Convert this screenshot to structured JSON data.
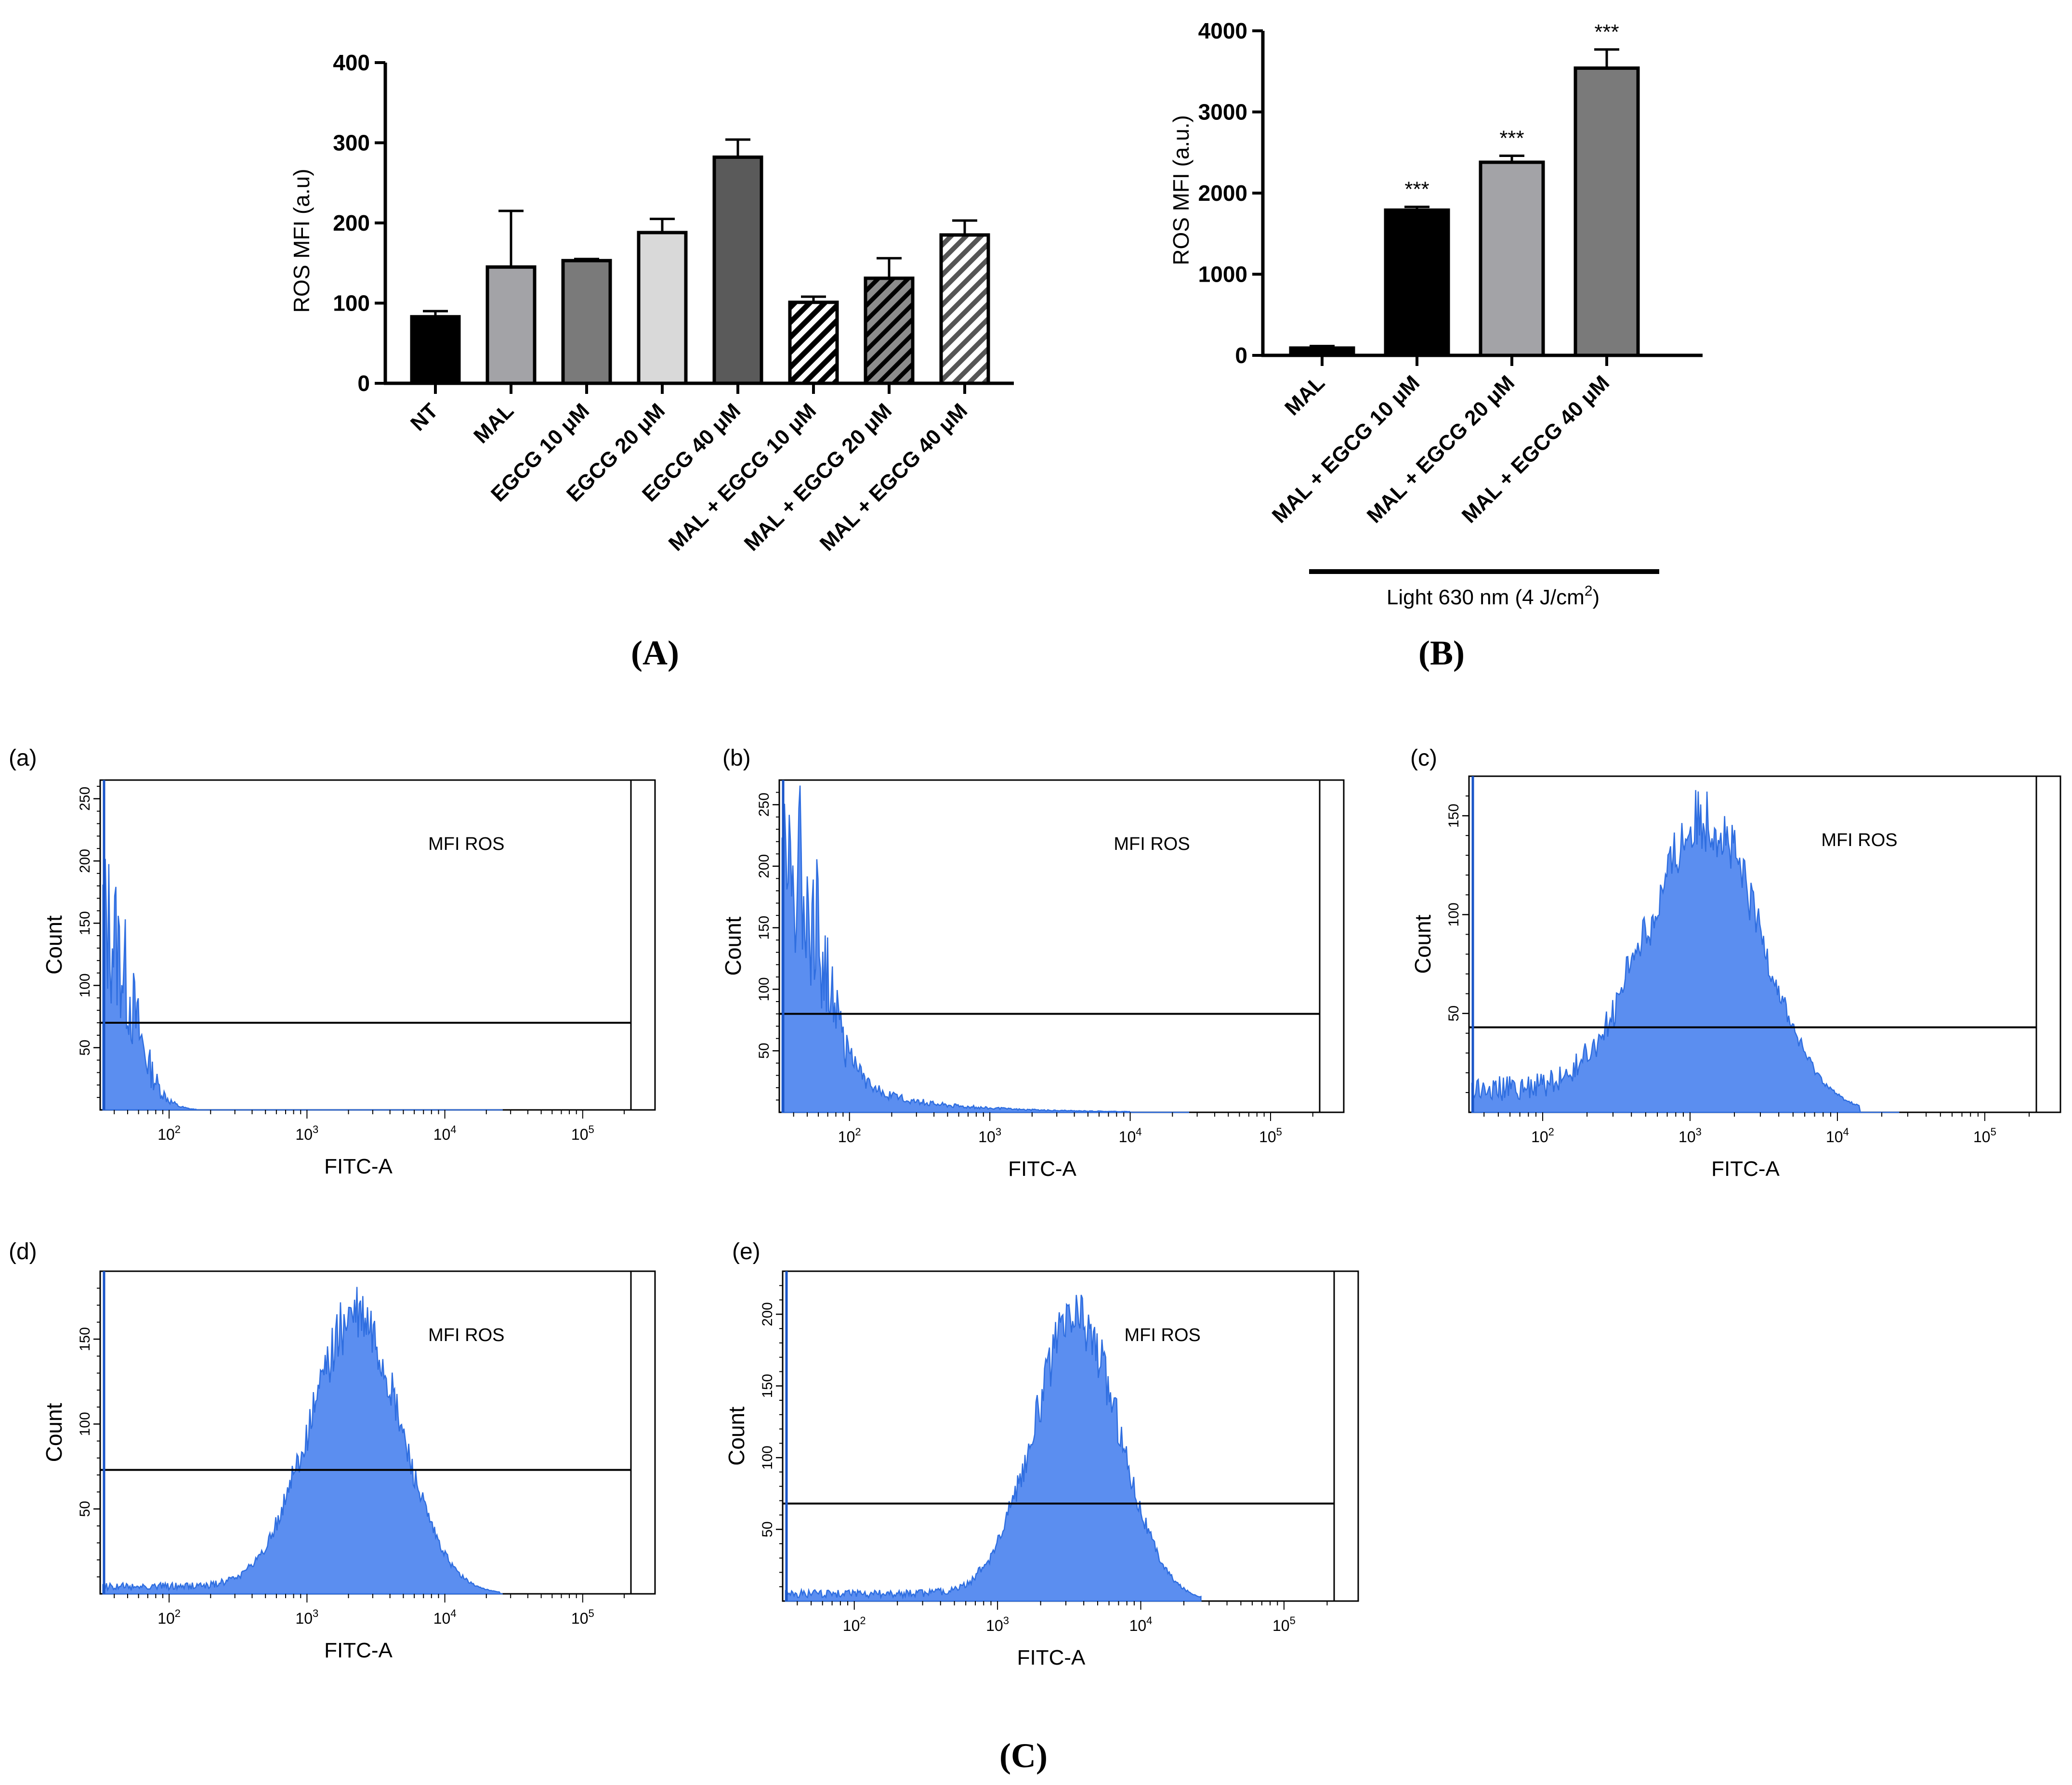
{
  "chart_data": [
    {
      "id": "A",
      "type": "bar",
      "panel_label": "(A)",
      "title": "",
      "ylabel": "ROS MFI (a.u)",
      "xlabel": "",
      "ylim": [
        0,
        400
      ],
      "yticks": [
        "0",
        "100",
        "200",
        "300",
        "400"
      ],
      "categories": [
        "NT",
        "MAL",
        "EGCG 10 μM",
        "EGCG 20 μM",
        "EGCG 40 μM",
        "MAL + EGCG 10 μM",
        "MAL + EGCG 20 μM",
        "MAL + EGCG 40 μM"
      ],
      "values": [
        83,
        145,
        153,
        188,
        282,
        101,
        131,
        185
      ],
      "errors": [
        7,
        70,
        2,
        17,
        22,
        7,
        25,
        18
      ],
      "fills": [
        "#000000",
        "#a3a3a7",
        "#7a7a7a",
        "#d9d9d9",
        "#5a5a5a",
        "hatch-white",
        "hatch-gray",
        "hatch-light"
      ]
    },
    {
      "id": "B",
      "type": "bar",
      "panel_label": "(B)",
      "title": "",
      "ylabel": "ROS MFI (a.u.)",
      "xlabel": "",
      "ylim": [
        0,
        4000
      ],
      "yticks": [
        "0",
        "1000",
        "2000",
        "3000",
        "4000"
      ],
      "categories": [
        "MAL",
        "MAL + EGCG 10 μM",
        "MAL + EGCG 20 μM",
        "MAL + EGCG 40 μM"
      ],
      "values": [
        90,
        1790,
        2380,
        3540
      ],
      "errors": [
        25,
        40,
        80,
        230
      ],
      "significance": [
        "",
        "***",
        "***",
        "***"
      ],
      "fills": [
        "#000000",
        "#000000",
        "#a3a3a7",
        "#7a7a7a"
      ],
      "group_bracket": {
        "base": "Light 630 nm (4 J/cm",
        "superscript": "2",
        "close": ")"
      }
    },
    {
      "id": "C",
      "type": "histogram",
      "panel_label": "(C)",
      "xlabel": "FITC-A",
      "ylabel": "Count",
      "x_scale": "log",
      "xlim_log10": [
        1.5,
        5.35
      ],
      "x_ticks": [
        {
          "base": "10",
          "exp": "2",
          "log": 2
        },
        {
          "base": "10",
          "exp": "3",
          "log": 3
        },
        {
          "base": "10",
          "exp": "4",
          "log": 4
        },
        {
          "base": "10",
          "exp": "5",
          "log": 5
        }
      ],
      "fill_color": "#5b8ef0",
      "edge_color": "#2f6ee0",
      "gate_label": "MFI ROS",
      "subplots": [
        {
          "label": "(a)",
          "ymax": 265,
          "yticks": [
            50,
            100,
            150,
            200,
            250
          ],
          "peak_log": 1.55,
          "peak_count": 150,
          "width": 0.25,
          "baseline": 0,
          "gate_y": 70,
          "kind": "low"
        },
        {
          "label": "(b)",
          "ymax": 270,
          "yticks": [
            50,
            100,
            150,
            200,
            250
          ],
          "peak_log": 1.85,
          "peak_count": 160,
          "width": 0.35,
          "baseline": 0,
          "gate_y": 80,
          "kind": "low-tail"
        },
        {
          "label": "(c)",
          "ymax": 170,
          "yticks": [
            50,
            100,
            150
          ],
          "peak_log": 3.1,
          "peak_count": 155,
          "width": 0.38,
          "baseline": 14,
          "gate_y": 43,
          "kind": "peak"
        },
        {
          "label": "(d)",
          "ymax": 190,
          "yticks": [
            50,
            100,
            150
          ],
          "peak_log": 3.35,
          "peak_count": 170,
          "width": 0.33,
          "baseline": 5,
          "gate_y": 73,
          "kind": "peak"
        },
        {
          "label": "(e)",
          "ymax": 230,
          "yticks": [
            50,
            100,
            150,
            200
          ],
          "peak_log": 3.55,
          "peak_count": 205,
          "width": 0.3,
          "baseline": 6,
          "gate_y": 68,
          "kind": "peak"
        }
      ]
    }
  ]
}
